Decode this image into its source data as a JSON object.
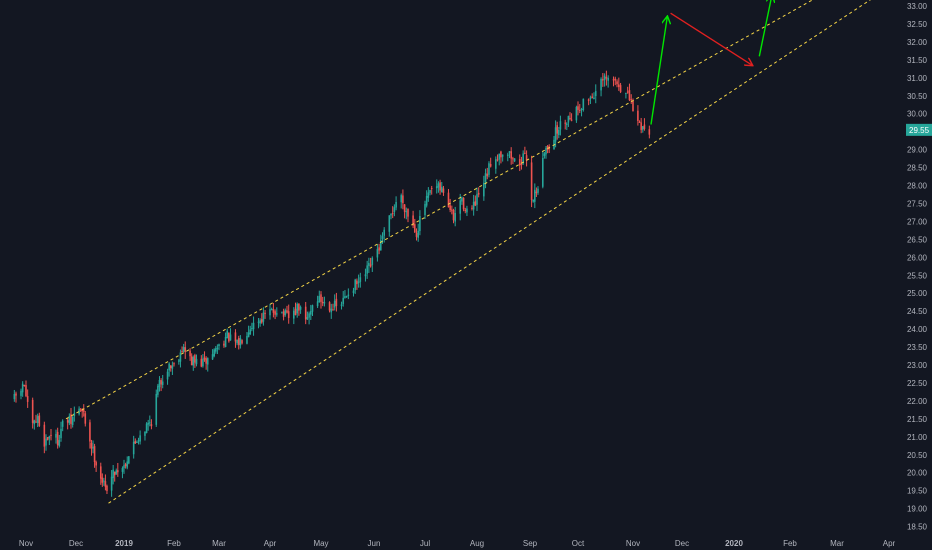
{
  "chart_data": {
    "type": "candlestick",
    "title": "",
    "xlabel": "",
    "ylabel": "",
    "y_axis_position": "right",
    "ylim": [
      18.35,
      33.1
    ],
    "y_ticks": [
      "18.50",
      "19.00",
      "19.50",
      "20.00",
      "20.50",
      "21.00",
      "21.50",
      "22.00",
      "22.50",
      "23.00",
      "23.50",
      "24.00",
      "24.50",
      "25.00",
      "25.50",
      "26.00",
      "26.50",
      "27.00",
      "27.50",
      "28.00",
      "28.50",
      "29.00",
      "29.50",
      "30.00",
      "30.50",
      "31.00",
      "31.50",
      "32.00",
      "32.50",
      "33.00"
    ],
    "x_ticks": [
      {
        "label": "Nov",
        "date": "2018-11-01",
        "bold": false
      },
      {
        "label": "Dec",
        "date": "2018-12-01",
        "bold": false
      },
      {
        "label": "2019",
        "date": "2019-01-01",
        "bold": true
      },
      {
        "label": "Feb",
        "date": "2019-02-01",
        "bold": false
      },
      {
        "label": "Mar",
        "date": "2019-03-01",
        "bold": false
      },
      {
        "label": "Apr",
        "date": "2019-04-01",
        "bold": false
      },
      {
        "label": "May",
        "date": "2019-05-01",
        "bold": false
      },
      {
        "label": "Jun",
        "date": "2019-06-01",
        "bold": false
      },
      {
        "label": "Jul",
        "date": "2019-07-01",
        "bold": false
      },
      {
        "label": "Aug",
        "date": "2019-08-01",
        "bold": false
      },
      {
        "label": "Sep",
        "date": "2019-09-01",
        "bold": false
      },
      {
        "label": "Oct",
        "date": "2019-10-01",
        "bold": false
      },
      {
        "label": "Nov",
        "date": "2019-11-01",
        "bold": false
      },
      {
        "label": "Dec",
        "date": "2019-12-01",
        "bold": false
      },
      {
        "label": "2020",
        "date": "2020-01-01",
        "bold": true
      },
      {
        "label": "Feb",
        "date": "2020-02-01",
        "bold": false
      },
      {
        "label": "Mar",
        "date": "2020-03-01",
        "bold": false
      },
      {
        "label": "Apr",
        "date": "2020-04-01",
        "bold": false
      }
    ],
    "last_price": "29.55",
    "colors": {
      "background": "#131722",
      "up": "#26a69a",
      "down": "#ef5350",
      "axis_text": "#b2b5be",
      "badge": "#26a69a",
      "channel": "#f5d547",
      "arrow_up": "#00e600",
      "arrow_down": "#e02020"
    },
    "channel_lines": [
      {
        "name": "upper",
        "start": [
          "2018-11-25",
          21.5
        ],
        "end": [
          "2020-02-20",
          33.3
        ]
      },
      {
        "name": "lower",
        "start": [
          "2018-12-22",
          19.15
        ],
        "end": [
          "2020-03-25",
          33.3
        ]
      }
    ],
    "projection_arrows": [
      {
        "color": "green",
        "points": [
          [
            "2019-11-12",
            29.7
          ],
          [
            "2019-11-22",
            32.7
          ]
        ]
      },
      {
        "color": "red",
        "points": [
          [
            "2019-11-24",
            32.8
          ],
          [
            "2020-01-11",
            31.35
          ]
        ]
      },
      {
        "color": "green",
        "points": [
          [
            "2020-01-15",
            31.6
          ],
          [
            "2020-01-22",
            33.3
          ]
        ]
      }
    ],
    "anchors": [
      [
        "2018-10-25",
        22.05
      ],
      [
        "2018-10-31",
        22.45
      ],
      [
        "2018-11-04",
        21.2
      ],
      [
        "2018-11-08",
        21.5
      ],
      [
        "2018-11-12",
        20.85
      ],
      [
        "2018-11-16",
        21.1
      ],
      [
        "2018-11-20",
        20.9
      ],
      [
        "2018-11-24",
        21.5
      ],
      [
        "2018-11-28",
        21.4
      ],
      [
        "2018-12-02",
        21.85
      ],
      [
        "2018-12-06",
        21.6
      ],
      [
        "2018-12-10",
        20.9
      ],
      [
        "2018-12-16",
        20.0
      ],
      [
        "2018-12-20",
        19.55
      ],
      [
        "2018-12-26",
        20.05
      ],
      [
        "2019-01-01",
        20.2
      ],
      [
        "2019-01-06",
        20.7
      ],
      [
        "2019-01-12",
        21.15
      ],
      [
        "2019-01-18",
        21.45
      ],
      [
        "2019-01-22",
        22.35
      ],
      [
        "2019-01-28",
        22.95
      ],
      [
        "2019-02-02",
        23.05
      ],
      [
        "2019-02-06",
        23.5
      ],
      [
        "2019-02-12",
        23.1
      ],
      [
        "2019-02-20",
        23.05
      ],
      [
        "2019-02-28",
        23.5
      ],
      [
        "2019-03-06",
        23.8
      ],
      [
        "2019-03-12",
        23.55
      ],
      [
        "2019-03-20",
        24.1
      ],
      [
        "2019-03-28",
        24.35
      ],
      [
        "2019-04-05",
        24.55
      ],
      [
        "2019-04-12",
        24.3
      ],
      [
        "2019-04-18",
        24.6
      ],
      [
        "2019-04-22",
        24.2
      ],
      [
        "2019-04-28",
        24.9
      ],
      [
        "2019-05-04",
        24.7
      ],
      [
        "2019-05-12",
        24.6
      ],
      [
        "2019-05-18",
        25.15
      ],
      [
        "2019-05-24",
        25.3
      ],
      [
        "2019-05-31",
        25.85
      ],
      [
        "2019-06-06",
        26.5
      ],
      [
        "2019-06-12",
        27.3
      ],
      [
        "2019-06-16",
        27.8
      ],
      [
        "2019-06-20",
        27.3
      ],
      [
        "2019-06-26",
        26.7
      ],
      [
        "2019-07-01",
        27.5
      ],
      [
        "2019-07-06",
        27.95
      ],
      [
        "2019-07-12",
        27.85
      ],
      [
        "2019-07-18",
        27.05
      ],
      [
        "2019-07-22",
        27.6
      ],
      [
        "2019-07-28",
        27.2
      ],
      [
        "2019-08-04",
        27.9
      ],
      [
        "2019-08-10",
        28.75
      ],
      [
        "2019-08-18",
        29.0
      ],
      [
        "2019-08-24",
        28.6
      ],
      [
        "2019-08-30",
        28.8
      ],
      [
        "2019-09-02",
        27.6
      ],
      [
        "2019-09-06",
        28.0
      ],
      [
        "2019-09-10",
        28.9
      ],
      [
        "2019-09-16",
        29.4
      ],
      [
        "2019-09-22",
        29.8
      ],
      [
        "2019-09-28",
        30.0
      ],
      [
        "2019-10-04",
        30.3
      ],
      [
        "2019-10-10",
        30.55
      ],
      [
        "2019-10-15",
        30.9
      ],
      [
        "2019-10-20",
        30.95
      ],
      [
        "2019-10-24",
        30.8
      ],
      [
        "2019-10-30",
        30.4
      ],
      [
        "2019-11-04",
        29.75
      ],
      [
        "2019-11-08",
        29.6
      ],
      [
        "2019-11-11",
        29.55
      ]
    ]
  }
}
